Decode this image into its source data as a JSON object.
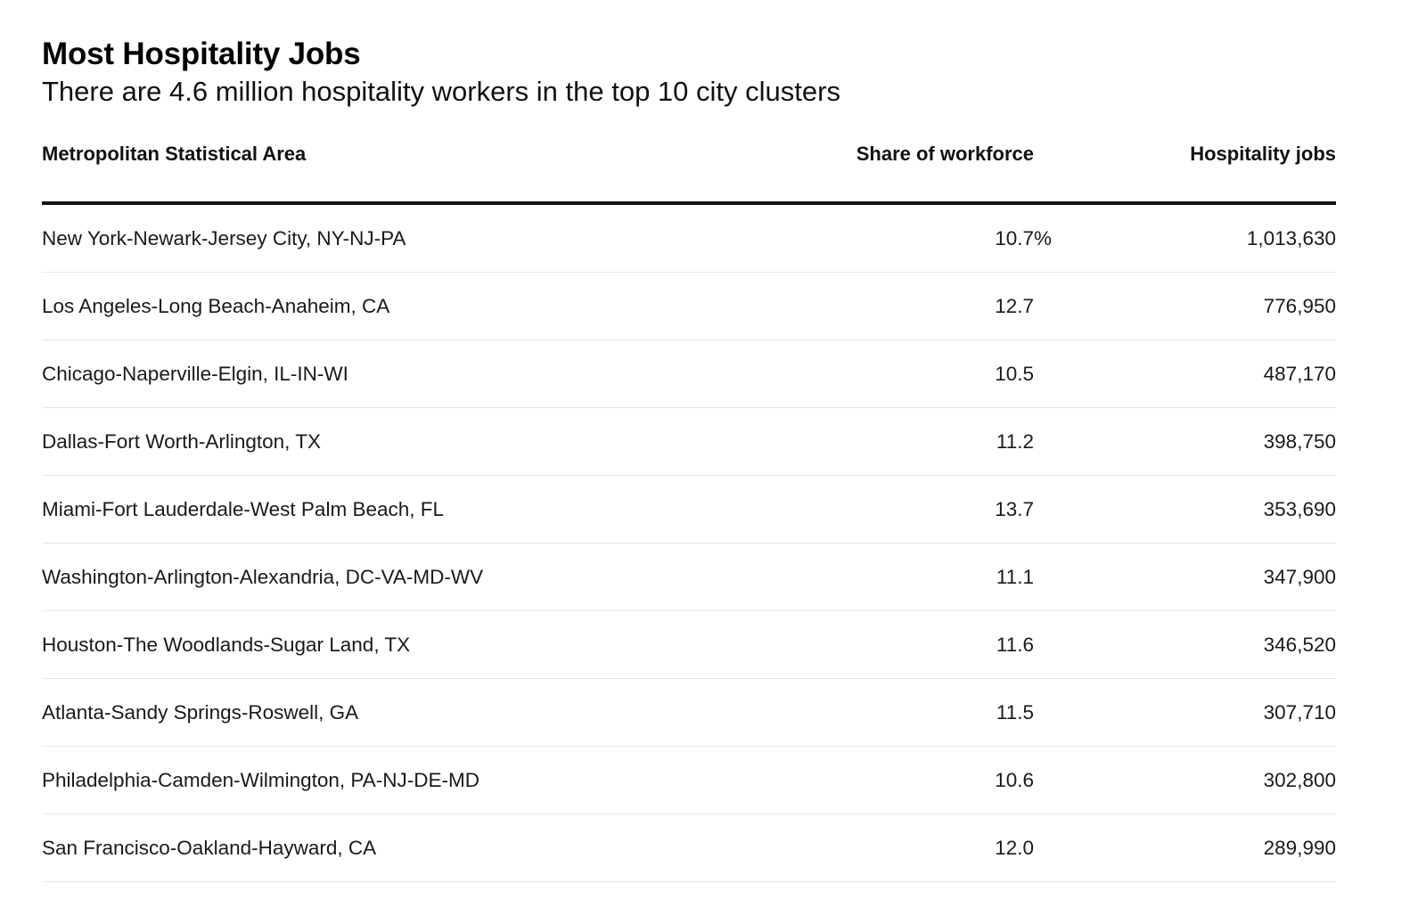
{
  "title": "Most Hospitality Jobs",
  "subtitle": "There are 4.6 million hospitality workers in the top 10 city clusters",
  "chart_data": {
    "type": "table",
    "columns": [
      "Metropolitan Statistical Area",
      "Share of workforce",
      "Hospitality jobs"
    ],
    "rows": [
      {
        "area": "New York-Newark-Jersey City, NY-NJ-PA",
        "share": "10.7",
        "share_suffix": "%",
        "jobs": "1,013,630"
      },
      {
        "area": "Los Angeles-Long Beach-Anaheim, CA",
        "share": "12.7",
        "share_suffix": "",
        "jobs": "776,950"
      },
      {
        "area": "Chicago-Naperville-Elgin, IL-IN-WI",
        "share": "10.5",
        "share_suffix": "",
        "jobs": "487,170"
      },
      {
        "area": "Dallas-Fort Worth-Arlington, TX",
        "share": "11.2",
        "share_suffix": "",
        "jobs": "398,750"
      },
      {
        "area": "Miami-Fort Lauderdale-West Palm Beach, FL",
        "share": "13.7",
        "share_suffix": "",
        "jobs": "353,690"
      },
      {
        "area": "Washington-Arlington-Alexandria, DC-VA-MD-WV",
        "share": "11.1",
        "share_suffix": "",
        "jobs": "347,900"
      },
      {
        "area": "Houston-The Woodlands-Sugar Land, TX",
        "share": "11.6",
        "share_suffix": "",
        "jobs": "346,520"
      },
      {
        "area": "Atlanta-Sandy Springs-Roswell, GA",
        "share": "11.5",
        "share_suffix": "",
        "jobs": "307,710"
      },
      {
        "area": "Philadelphia-Camden-Wilmington, PA-NJ-DE-MD",
        "share": "10.6",
        "share_suffix": "",
        "jobs": "302,800"
      },
      {
        "area": "San Francisco-Oakland-Hayward, CA",
        "share": "12.0",
        "share_suffix": "",
        "jobs": "289,990"
      }
    ]
  }
}
